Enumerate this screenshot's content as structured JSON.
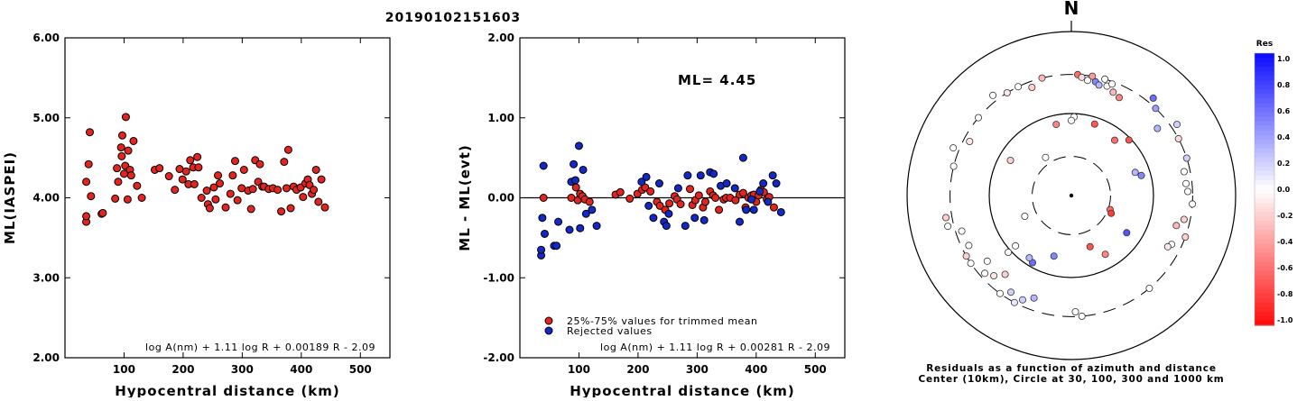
{
  "page_title": "20190102151603",
  "chart_data": [
    {
      "type": "scatter",
      "id": "ml-vs-distance",
      "xlabel": "Hypocentral distance (km)",
      "ylabel": "ML(IASPEI)",
      "xlim": [
        0,
        550
      ],
      "ylim": [
        2.0,
        6.0
      ],
      "xticks": [
        "100",
        "200",
        "300",
        "400",
        "500"
      ],
      "yticks": [
        "2.00",
        "3.00",
        "4.00",
        "5.00",
        "6.00"
      ],
      "formula": "log A(nm) + 1.11 log R + 0.00189 R - 2.09",
      "marker_color": "#e3241f",
      "points": [
        [
          36,
          3.7
        ],
        [
          36,
          3.77
        ],
        [
          36,
          4.2
        ],
        [
          40,
          4.42
        ],
        [
          42,
          4.82
        ],
        [
          44,
          4.02
        ],
        [
          62,
          3.8
        ],
        [
          64,
          3.81
        ],
        [
          85,
          3.99
        ],
        [
          88,
          4.37
        ],
        [
          90,
          4.2
        ],
        [
          95,
          4.63
        ],
        [
          96,
          4.52
        ],
        [
          97,
          4.78
        ],
        [
          100,
          4.3
        ],
        [
          102,
          4.4
        ],
        [
          103,
          5.01
        ],
        [
          106,
          3.98
        ],
        [
          107,
          4.59
        ],
        [
          110,
          4.35
        ],
        [
          112,
          4.28
        ],
        [
          116,
          4.71
        ],
        [
          122,
          4.15
        ],
        [
          130,
          4.0
        ],
        [
          152,
          4.35
        ],
        [
          160,
          4.37
        ],
        [
          176,
          4.27
        ],
        [
          186,
          4.1
        ],
        [
          194,
          4.36
        ],
        [
          199,
          4.23
        ],
        [
          205,
          4.33
        ],
        [
          209,
          4.17
        ],
        [
          212,
          4.47
        ],
        [
          217,
          4.38
        ],
        [
          219,
          4.17
        ],
        [
          224,
          4.51
        ],
        [
          226,
          4.38
        ],
        [
          231,
          4.0
        ],
        [
          240,
          4.09
        ],
        [
          242,
          3.92
        ],
        [
          245,
          3.87
        ],
        [
          252,
          4.13
        ],
        [
          255,
          3.98
        ],
        [
          259,
          4.28
        ],
        [
          262,
          4.18
        ],
        [
          272,
          3.88
        ],
        [
          280,
          4.05
        ],
        [
          284,
          4.28
        ],
        [
          288,
          4.46
        ],
        [
          292,
          3.97
        ],
        [
          299,
          4.12
        ],
        [
          303,
          4.35
        ],
        [
          310,
          4.09
        ],
        [
          315,
          3.86
        ],
        [
          318,
          4.11
        ],
        [
          322,
          4.47
        ],
        [
          327,
          4.2
        ],
        [
          330,
          4.42
        ],
        [
          334,
          4.14
        ],
        [
          337,
          4.14
        ],
        [
          345,
          4.11
        ],
        [
          352,
          4.12
        ],
        [
          360,
          4.1
        ],
        [
          366,
          3.83
        ],
        [
          371,
          4.45
        ],
        [
          375,
          4.12
        ],
        [
          378,
          4.6
        ],
        [
          382,
          3.87
        ],
        [
          387,
          4.14
        ],
        [
          392,
          4.1
        ],
        [
          399,
          4.13
        ],
        [
          403,
          4.01
        ],
        [
          407,
          4.18
        ],
        [
          411,
          4.23
        ],
        [
          414,
          4.16
        ],
        [
          418,
          4.05
        ],
        [
          421,
          4.1
        ],
        [
          425,
          4.35
        ],
        [
          429,
          3.95
        ],
        [
          434,
          4.23
        ],
        [
          440,
          3.88
        ]
      ]
    },
    {
      "type": "scatter",
      "id": "residual-vs-distance",
      "xlabel": "Hypocentral distance (km)",
      "ylabel": "ML - ML(evt)",
      "xlim": [
        0,
        550
      ],
      "ylim": [
        -2.0,
        2.0
      ],
      "xticks": [
        "100",
        "200",
        "300",
        "400",
        "500"
      ],
      "yticks": [
        "-2.00",
        "-1.00",
        "0.00",
        "1.00",
        "2.00"
      ],
      "annotation": "ML= 4.45",
      "formula": "log A(nm) + 1.11 log R + 0.00281 R - 2.09",
      "legend": [
        {
          "label": "25%-75% values for trimmed mean",
          "color": "#e3241f"
        },
        {
          "label": "Rejected values",
          "color": "#1428c8"
        }
      ],
      "series": [
        {
          "name": "25%-75% values for trimmed mean",
          "color": "#e3241f",
          "points": [
            [
              40,
              0.0
            ],
            [
              87,
              0.0
            ],
            [
              95,
              0.13
            ],
            [
              98,
              -0.03
            ],
            [
              102,
              0.05
            ],
            [
              106,
              0.02
            ],
            [
              110,
              -0.02
            ],
            [
              118,
              -0.05
            ],
            [
              162,
              0.04
            ],
            [
              170,
              0.07
            ],
            [
              186,
              -0.01
            ],
            [
              199,
              0.05
            ],
            [
              207,
              0.1
            ],
            [
              212,
              0.13
            ],
            [
              221,
              0.08
            ],
            [
              232,
              -0.05
            ],
            [
              237,
              -0.1
            ],
            [
              246,
              -0.15
            ],
            [
              253,
              -0.07
            ],
            [
              262,
              0.02
            ],
            [
              266,
              -0.02
            ],
            [
              272,
              -0.08
            ],
            [
              288,
              0.11
            ],
            [
              292,
              -0.09
            ],
            [
              297,
              -0.03
            ],
            [
              303,
              0.03
            ],
            [
              310,
              -0.12
            ],
            [
              314,
              -0.05
            ],
            [
              322,
              0.08
            ],
            [
              327,
              0.03
            ],
            [
              331,
              0.0
            ],
            [
              337,
              -0.15
            ],
            [
              345,
              -0.02
            ],
            [
              349,
              0.0
            ],
            [
              356,
              0.0
            ],
            [
              365,
              -0.03
            ],
            [
              372,
              0.04
            ],
            [
              378,
              0.06
            ],
            [
              382,
              -0.12
            ],
            [
              387,
              0.0
            ],
            [
              392,
              0.03
            ],
            [
              396,
              0.04
            ],
            [
              400,
              -0.05
            ],
            [
              404,
              0.03
            ],
            [
              408,
              0.1
            ],
            [
              413,
              0.07
            ],
            [
              418,
              -0.02
            ],
            [
              422,
              0.01
            ],
            [
              430,
              -0.12
            ]
          ]
        },
        {
          "name": "Rejected values",
          "color": "#1428c8",
          "points": [
            [
              36,
              -0.72
            ],
            [
              36,
              -0.65
            ],
            [
              38,
              -0.25
            ],
            [
              40,
              0.4
            ],
            [
              42,
              -0.45
            ],
            [
              58,
              -0.6
            ],
            [
              62,
              -0.6
            ],
            [
              65,
              -0.3
            ],
            [
              84,
              -0.4
            ],
            [
              87,
              0.2
            ],
            [
              91,
              0.42
            ],
            [
              94,
              0.22
            ],
            [
              100,
              0.65
            ],
            [
              102,
              -0.38
            ],
            [
              107,
              0.35
            ],
            [
              112,
              -0.2
            ],
            [
              122,
              -0.15
            ],
            [
              130,
              -0.35
            ],
            [
              206,
              0.2
            ],
            [
              214,
              0.26
            ],
            [
              218,
              -0.1
            ],
            [
              226,
              -0.25
            ],
            [
              236,
              0.18
            ],
            [
              244,
              -0.3
            ],
            [
              248,
              -0.35
            ],
            [
              252,
              -0.2
            ],
            [
              268,
              0.12
            ],
            [
              280,
              -0.35
            ],
            [
              284,
              0.28
            ],
            [
              296,
              -0.25
            ],
            [
              306,
              0.28
            ],
            [
              312,
              -0.28
            ],
            [
              322,
              0.32
            ],
            [
              328,
              0.3
            ],
            [
              340,
              0.15
            ],
            [
              350,
              0.18
            ],
            [
              364,
              0.12
            ],
            [
              372,
              -0.3
            ],
            [
              378,
              0.5
            ],
            [
              383,
              -0.15
            ],
            [
              392,
              -0.02
            ],
            [
              396,
              -0.15
            ],
            [
              406,
              0.08
            ],
            [
              412,
              0.18
            ],
            [
              420,
              -0.05
            ],
            [
              428,
              0.28
            ],
            [
              434,
              0.18
            ],
            [
              442,
              -0.18
            ]
          ]
        }
      ]
    },
    {
      "type": "scatter",
      "id": "residuals-azimuth-distance",
      "north_label": "N",
      "caption_lines": [
        "Residuals as a function of azimuth and distance",
        "Center (10km), Circle at 30, 100, 300 and 1000 km"
      ],
      "rings_km": [
        30,
        100,
        300,
        1000
      ],
      "colorbar": {
        "title": "Res",
        "ticks": [
          "1.0",
          "0.8",
          "0.6",
          "0.4",
          "0.2",
          "0.0",
          "-0.2",
          "-0.4",
          "-0.6",
          "-0.8",
          "-1.0"
        ],
        "min": -1.0,
        "max": 1.0,
        "positive_color": "#0a0aff",
        "negative_color": "#ff0a0a"
      },
      "stations": [
        [
          3,
          1.0,
          -0.6
        ],
        [
          5,
          0.98,
          -0.15
        ],
        [
          8,
          0.96,
          0.0
        ],
        [
          10,
          1.0,
          -0.4
        ],
        [
          12,
          0.96,
          0.5
        ],
        [
          14,
          0.94,
          0.3
        ],
        [
          16,
          1.0,
          0.0
        ],
        [
          18,
          0.95,
          0.0
        ],
        [
          20,
          0.98,
          0.0
        ],
        [
          22,
          0.92,
          -0.3
        ],
        [
          26,
          0.9,
          -0.5
        ],
        [
          40,
          1.05,
          0.6
        ],
        [
          44,
          1.0,
          0.4
        ],
        [
          52,
          0.9,
          0.3
        ],
        [
          56,
          1.05,
          0.2
        ],
        [
          62,
          1.0,
          -0.15
        ],
        [
          72,
          1.0,
          0.2
        ],
        [
          78,
          0.95,
          0.0
        ],
        [
          84,
          0.95,
          0.0
        ],
        [
          88,
          0.96,
          0.0
        ],
        [
          94,
          1.0,
          0.0
        ],
        [
          102,
          0.95,
          -0.2
        ],
        [
          106,
          0.9,
          -0.3
        ],
        [
          110,
          1.0,
          -0.2
        ],
        [
          116,
          0.92,
          0.0
        ],
        [
          118,
          0.9,
          -0.1
        ],
        [
          140,
          1.0,
          0.0
        ],
        [
          175,
          1.0,
          0.0
        ],
        [
          178,
          0.96,
          0.0
        ],
        [
          200,
          0.9,
          0.3
        ],
        [
          205,
          0.95,
          0.2
        ],
        [
          208,
          1.0,
          0.1
        ],
        [
          212,
          0.94,
          0.2
        ],
        [
          216,
          1.0,
          0.0
        ],
        [
          220,
          0.85,
          -0.2
        ],
        [
          224,
          0.92,
          -0.1
        ],
        [
          228,
          0.96,
          0.0
        ],
        [
          232,
          0.88,
          0.0
        ],
        [
          236,
          1.0,
          0.0
        ],
        [
          240,
          1.0,
          -0.2
        ],
        [
          244,
          0.94,
          0.0
        ],
        [
          252,
          0.95,
          0.0
        ],
        [
          256,
          1.05,
          0.0
        ],
        [
          260,
          1.05,
          -0.2
        ],
        [
          284,
          1.0,
          0.0
        ],
        [
          292,
          1.05,
          0.0
        ],
        [
          298,
          0.95,
          -0.1
        ],
        [
          310,
          1.0,
          0.0
        ],
        [
          322,
          1.05,
          0.0
        ],
        [
          328,
          1.0,
          -0.1
        ],
        [
          334,
          1.0,
          0.0
        ],
        [
          340,
          0.95,
          -0.2
        ],
        [
          346,
          1.0,
          -0.3
        ]
      ],
      "near_stations": [
        [
          18,
          0.62,
          -0.7
        ],
        [
          2,
          0.65,
          0.0
        ],
        [
          0,
          0.62,
          0.0
        ],
        [
          38,
          0.58,
          -0.6
        ],
        [
          46,
          0.66,
          -0.7
        ],
        [
          70,
          0.56,
          0.3
        ],
        [
          74,
          0.6,
          0.5
        ],
        [
          110,
          0.34,
          -0.6
        ],
        [
          114,
          0.36,
          -0.8
        ],
        [
          150,
          0.56,
          -0.5
        ],
        [
          124,
          0.55,
          0.7
        ],
        [
          160,
          0.45,
          -0.7
        ],
        [
          196,
          0.52,
          0.5
        ],
        [
          210,
          0.64,
          0.6
        ],
        [
          214,
          0.62,
          0.3
        ],
        [
          228,
          0.7,
          0.0
        ],
        [
          228,
          0.62,
          0.0
        ],
        [
          246,
          0.42,
          0.0
        ],
        [
          300,
          0.58,
          -0.2
        ],
        [
          326,
          0.38,
          0.0
        ],
        [
          348,
          0.6,
          -0.5
        ]
      ]
    }
  ]
}
